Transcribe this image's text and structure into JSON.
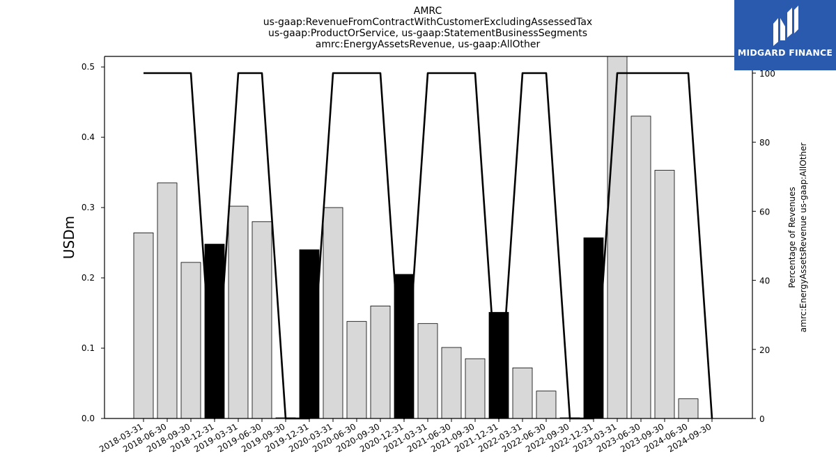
{
  "chart_data": {
    "type": "bar",
    "title_lines": [
      "AMRC",
      "us-gaap:RevenueFromContractWithCustomerExcludingAssessedTax",
      "us-gaap:ProductOrService, us-gaap:StatementBusinessSegments",
      "amrc:EnergyAssetsRevenue, us-gaap:AllOther"
    ],
    "categories": [
      "2018-03-31",
      "2018-06-30",
      "2018-09-30",
      "2018-12-31",
      "2019-03-31",
      "2019-06-30",
      "2019-09-30",
      "2019-12-31",
      "2020-03-31",
      "2020-06-30",
      "2020-09-30",
      "2020-12-31",
      "2021-03-31",
      "2021-06-30",
      "2021-09-30",
      "2021-12-31",
      "2022-03-31",
      "2022-06-30",
      "2022-09-30",
      "2022-12-31",
      "2023-03-31",
      "2023-06-30",
      "2023-09-30",
      "2024-06-30",
      "2024-09-30"
    ],
    "series": [
      {
        "kind": "bar",
        "values": [
          0.264,
          0.335,
          0.222,
          0.248,
          0.302,
          0.28,
          0.001,
          0.24,
          0.3,
          0.138,
          0.16,
          0.205,
          0.135,
          0.101,
          0.085,
          0.151,
          0.072,
          0.039,
          0.001,
          0.257,
          0.52,
          0.43,
          0.353,
          0.028,
          0.0
        ],
        "highlight": [
          false,
          false,
          false,
          true,
          false,
          false,
          false,
          true,
          false,
          false,
          false,
          true,
          false,
          false,
          false,
          true,
          false,
          false,
          false,
          true,
          false,
          false,
          false,
          false,
          false
        ]
      },
      {
        "kind": "line",
        "axis": "right",
        "values": [
          100,
          100,
          100,
          0,
          100,
          100,
          0,
          0,
          100,
          100,
          100,
          0,
          100,
          100,
          100,
          0,
          100,
          100,
          0,
          0,
          100,
          100,
          100,
          100,
          0
        ]
      }
    ],
    "ylabel": "USDm",
    "y2label_lines": [
      "Percentage of Revenues",
      "amrc:EnergyAssetsRevenue us-gaap:AllOther"
    ],
    "ylim": [
      0,
      0.515
    ],
    "y2lim": [
      0,
      100
    ],
    "yticks": [
      "0.0",
      "0.1",
      "0.2",
      "0.3",
      "0.4",
      "0.5"
    ],
    "y2ticks": [
      "0",
      "20",
      "40",
      "60",
      "80",
      "100"
    ],
    "colors": {
      "bar": "#d8d8d8",
      "bar_highlight": "#000000",
      "line": "#000000"
    }
  },
  "logo": {
    "text": "MIDGARD FINANCE",
    "icon": "midgard-m-logo-icon",
    "color": "#2a5aad"
  }
}
